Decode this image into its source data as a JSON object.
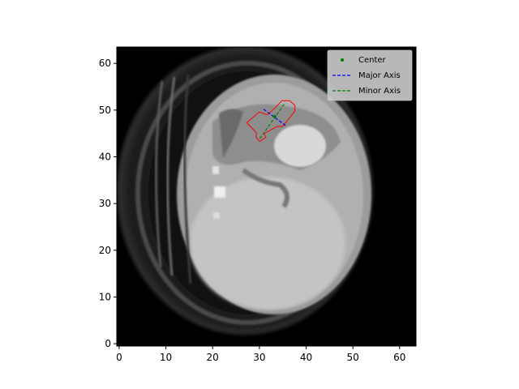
{
  "image": {
    "description_kind": "axial CT slice with segmented lesion overlay",
    "grid_size": 64
  },
  "axes": {
    "x_ticks": [
      "0",
      "10",
      "20",
      "30",
      "40",
      "50",
      "60"
    ],
    "y_ticks": [
      "0",
      "10",
      "20",
      "30",
      "40",
      "50",
      "60"
    ],
    "x_tick_values": [
      0,
      10,
      20,
      30,
      40,
      50,
      60
    ],
    "y_tick_values": [
      0,
      10,
      20,
      30,
      40,
      50,
      60
    ],
    "xlim": [
      -0.5,
      63.5
    ],
    "ylim": [
      63.5,
      -0.5
    ]
  },
  "legend": {
    "placement": "top-right",
    "entries": [
      {
        "label": "Center",
        "color": "#008000",
        "style": "point"
      },
      {
        "label": "Major Axis",
        "color": "#0000ff",
        "style": "dashed"
      },
      {
        "label": "Minor Axis",
        "color": "#008000",
        "style": "dashed"
      }
    ]
  },
  "overlay": {
    "contour_color": "#ff0000",
    "center": [
      33.3,
      48.6
    ],
    "major_axis": [
      [
        30.9,
        50.2
      ],
      [
        35.6,
        46.7
      ]
    ],
    "minor_axis": [
      [
        30.1,
        43.9
      ],
      [
        35.4,
        51.4
      ]
    ],
    "contour": [
      [
        30.1,
        43.3
      ],
      [
        31.4,
        44.2
      ],
      [
        31.0,
        45.0
      ],
      [
        33.8,
        46.5
      ],
      [
        35.0,
        46.5
      ],
      [
        36.8,
        48.8
      ],
      [
        37.6,
        49.8
      ],
      [
        37.6,
        51.0
      ],
      [
        36.5,
        52.0
      ],
      [
        34.8,
        52.0
      ],
      [
        33.5,
        50.6
      ],
      [
        31.7,
        49.0
      ],
      [
        30.0,
        49.6
      ],
      [
        27.3,
        47.3
      ],
      [
        29.4,
        45.1
      ],
      [
        29.3,
        44.2
      ],
      [
        30.1,
        43.3
      ]
    ]
  }
}
